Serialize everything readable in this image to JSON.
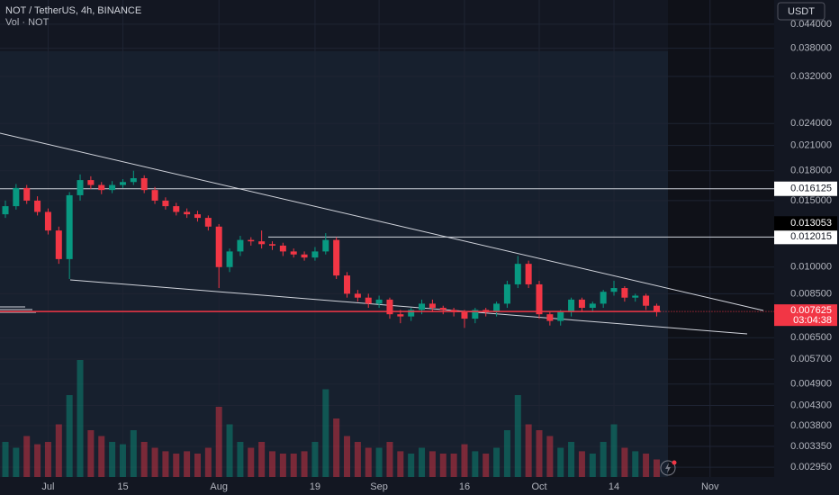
{
  "header": {
    "symbol": "NOT / TetherUS, 4h, BINANCE",
    "volume_label": "Vol · NOT",
    "currency": "USDT"
  },
  "chart_data": {
    "type": "candlestick",
    "categories": [
      null,
      null,
      null,
      null,
      "Jul",
      null,
      null,
      null,
      null,
      null,
      null,
      "15",
      null,
      null,
      null,
      null,
      null,
      null,
      null,
      null,
      "Aug",
      null,
      null,
      null,
      null,
      null,
      null,
      null,
      null,
      "19",
      null,
      null,
      null,
      null,
      null,
      "Sep",
      null,
      null,
      null,
      null,
      null,
      null,
      null,
      "16",
      null,
      null,
      null,
      null,
      null,
      null,
      "Oct",
      null,
      null,
      null,
      null,
      null,
      null,
      "14",
      null,
      null,
      null,
      null,
      null,
      null,
      null,
      null,
      "Nov",
      null,
      null,
      null,
      null,
      null
    ],
    "open": [
      0.0138,
      0.0145,
      0.0162,
      0.015,
      0.014,
      0.0125,
      0.0105,
      0.0155,
      0.017,
      0.0165,
      0.016,
      0.0165,
      0.0168,
      0.0172,
      0.016,
      0.015,
      0.0145,
      0.014,
      0.0138,
      0.0135,
      0.0128,
      0.01,
      0.011,
      0.0118,
      0.0117,
      0.0115,
      0.0114,
      0.011,
      0.0108,
      0.0106,
      0.011,
      0.0118,
      0.0095,
      0.0085,
      0.0083,
      0.008,
      0.0082,
      0.0075,
      0.0074,
      0.0077,
      0.008,
      0.0078,
      0.0077,
      0.0076,
      0.0073,
      0.0077,
      0.0076,
      0.008,
      0.009,
      0.0102,
      0.009,
      0.0075,
      0.0072,
      0.0076,
      0.0082,
      0.0078,
      0.008,
      0.0086,
      0.0088,
      0.0083,
      0.0084,
      0.0079,
      null,
      null,
      null,
      null,
      null,
      null,
      null,
      null,
      null,
      null
    ],
    "high": [
      0.015,
      0.0166,
      0.0165,
      0.0154,
      0.0143,
      0.0128,
      0.0158,
      0.0176,
      0.0174,
      0.0168,
      0.0169,
      0.0171,
      0.018,
      0.0175,
      0.0163,
      0.0153,
      0.0148,
      0.0143,
      0.0141,
      0.0137,
      0.013,
      0.0112,
      0.0121,
      0.012,
      0.0125,
      0.0117,
      0.0116,
      0.0112,
      0.011,
      0.0113,
      0.0123,
      0.012,
      0.0097,
      0.0087,
      0.0085,
      0.0084,
      0.0083,
      0.0077,
      0.0078,
      0.0082,
      0.0082,
      0.0079,
      0.0078,
      0.0077,
      0.0078,
      0.0078,
      0.0081,
      0.0092,
      0.0107,
      0.0104,
      0.0092,
      0.0076,
      0.0077,
      0.0083,
      0.0083,
      0.0081,
      0.0087,
      0.0092,
      0.0089,
      0.0085,
      0.0085,
      0.008,
      null,
      null,
      null,
      null,
      null,
      null,
      null,
      null,
      null,
      null
    ],
    "low": [
      0.0135,
      0.0142,
      0.0147,
      0.0137,
      0.0122,
      0.0102,
      0.0093,
      0.015,
      0.0161,
      0.0156,
      0.0157,
      0.0162,
      0.0165,
      0.0157,
      0.0147,
      0.0142,
      0.0137,
      0.0135,
      0.0132,
      0.0125,
      0.0088,
      0.0097,
      0.0107,
      0.0114,
      0.0112,
      0.0111,
      0.0107,
      0.0106,
      0.0104,
      0.0104,
      0.0108,
      0.0093,
      0.0083,
      0.0081,
      0.0078,
      0.0078,
      0.0073,
      0.0071,
      0.0072,
      0.0075,
      0.0076,
      0.0075,
      0.0074,
      0.0069,
      0.0071,
      0.0074,
      0.0074,
      0.0078,
      0.0088,
      0.0088,
      0.0073,
      0.007,
      0.007,
      0.0074,
      0.0076,
      0.0076,
      0.0078,
      0.0084,
      0.0081,
      0.0081,
      0.0077,
      0.0074,
      null,
      null,
      null,
      null,
      null,
      null,
      null,
      null,
      null,
      null
    ],
    "close": [
      0.0145,
      0.0162,
      0.015,
      0.014,
      0.0125,
      0.0105,
      0.0155,
      0.017,
      0.0165,
      0.016,
      0.0165,
      0.0168,
      0.0172,
      0.016,
      0.015,
      0.0145,
      0.014,
      0.0138,
      0.0135,
      0.0128,
      0.01,
      0.011,
      0.0118,
      0.0117,
      0.0115,
      0.0114,
      0.011,
      0.0108,
      0.0106,
      0.011,
      0.0118,
      0.0095,
      0.0085,
      0.0083,
      0.008,
      0.0082,
      0.0075,
      0.0074,
      0.0077,
      0.008,
      0.0078,
      0.0077,
      0.0076,
      0.0073,
      0.0077,
      0.0076,
      0.008,
      0.009,
      0.0102,
      0.009,
      0.0075,
      0.0072,
      0.0076,
      0.0082,
      0.0078,
      0.008,
      0.0086,
      0.0088,
      0.0083,
      0.0084,
      0.0079,
      0.007625,
      null,
      null,
      null,
      null,
      null,
      null,
      null,
      null,
      null,
      null
    ],
    "volume": [
      30,
      25,
      35,
      28,
      30,
      45,
      70,
      100,
      40,
      35,
      30,
      28,
      40,
      30,
      25,
      22,
      20,
      22,
      20,
      25,
      60,
      45,
      30,
      25,
      30,
      22,
      20,
      20,
      22,
      30,
      75,
      50,
      35,
      30,
      25,
      25,
      30,
      22,
      20,
      25,
      22,
      20,
      20,
      28,
      22,
      20,
      25,
      40,
      70,
      45,
      40,
      35,
      25,
      30,
      22,
      20,
      30,
      45,
      25,
      22,
      20,
      15,
      null,
      null,
      null,
      null,
      null,
      null,
      null,
      null,
      null,
      null
    ],
    "volume_ylim": [
      0,
      100
    ],
    "up_color": "#089981",
    "down_color": "#f23645",
    "log_scale": true,
    "grid": true,
    "ylim": [
      0.002779,
      0.051
    ],
    "yticks": [
      {
        "value": 0.044,
        "label": "0.044000"
      },
      {
        "value": 0.038,
        "label": "0.038000"
      },
      {
        "value": 0.032,
        "label": "0.032000"
      },
      {
        "value": 0.024,
        "label": "0.024000"
      },
      {
        "value": 0.021,
        "label": "0.021000"
      },
      {
        "value": 0.018,
        "label": "0.018000"
      },
      {
        "value": 0.015,
        "label": "0.015000"
      },
      {
        "value": 0.01,
        "label": "0.010000"
      },
      {
        "value": 0.0085,
        "label": "0.008500"
      },
      {
        "value": 0.0065,
        "label": "0.006500"
      },
      {
        "value": 0.0057,
        "label": "0.005700"
      },
      {
        "value": 0.0049,
        "label": "0.004900"
      },
      {
        "value": 0.0043,
        "label": "0.004300"
      },
      {
        "value": 0.0038,
        "label": "0.003800"
      },
      {
        "value": 0.00335,
        "label": "0.003350"
      },
      {
        "value": 0.00295,
        "label": "0.002950"
      }
    ],
    "horizontal_lines": [
      0.016125,
      0.012015
    ],
    "marker_price": 0.013053,
    "countdown": "03:04:38"
  }
}
